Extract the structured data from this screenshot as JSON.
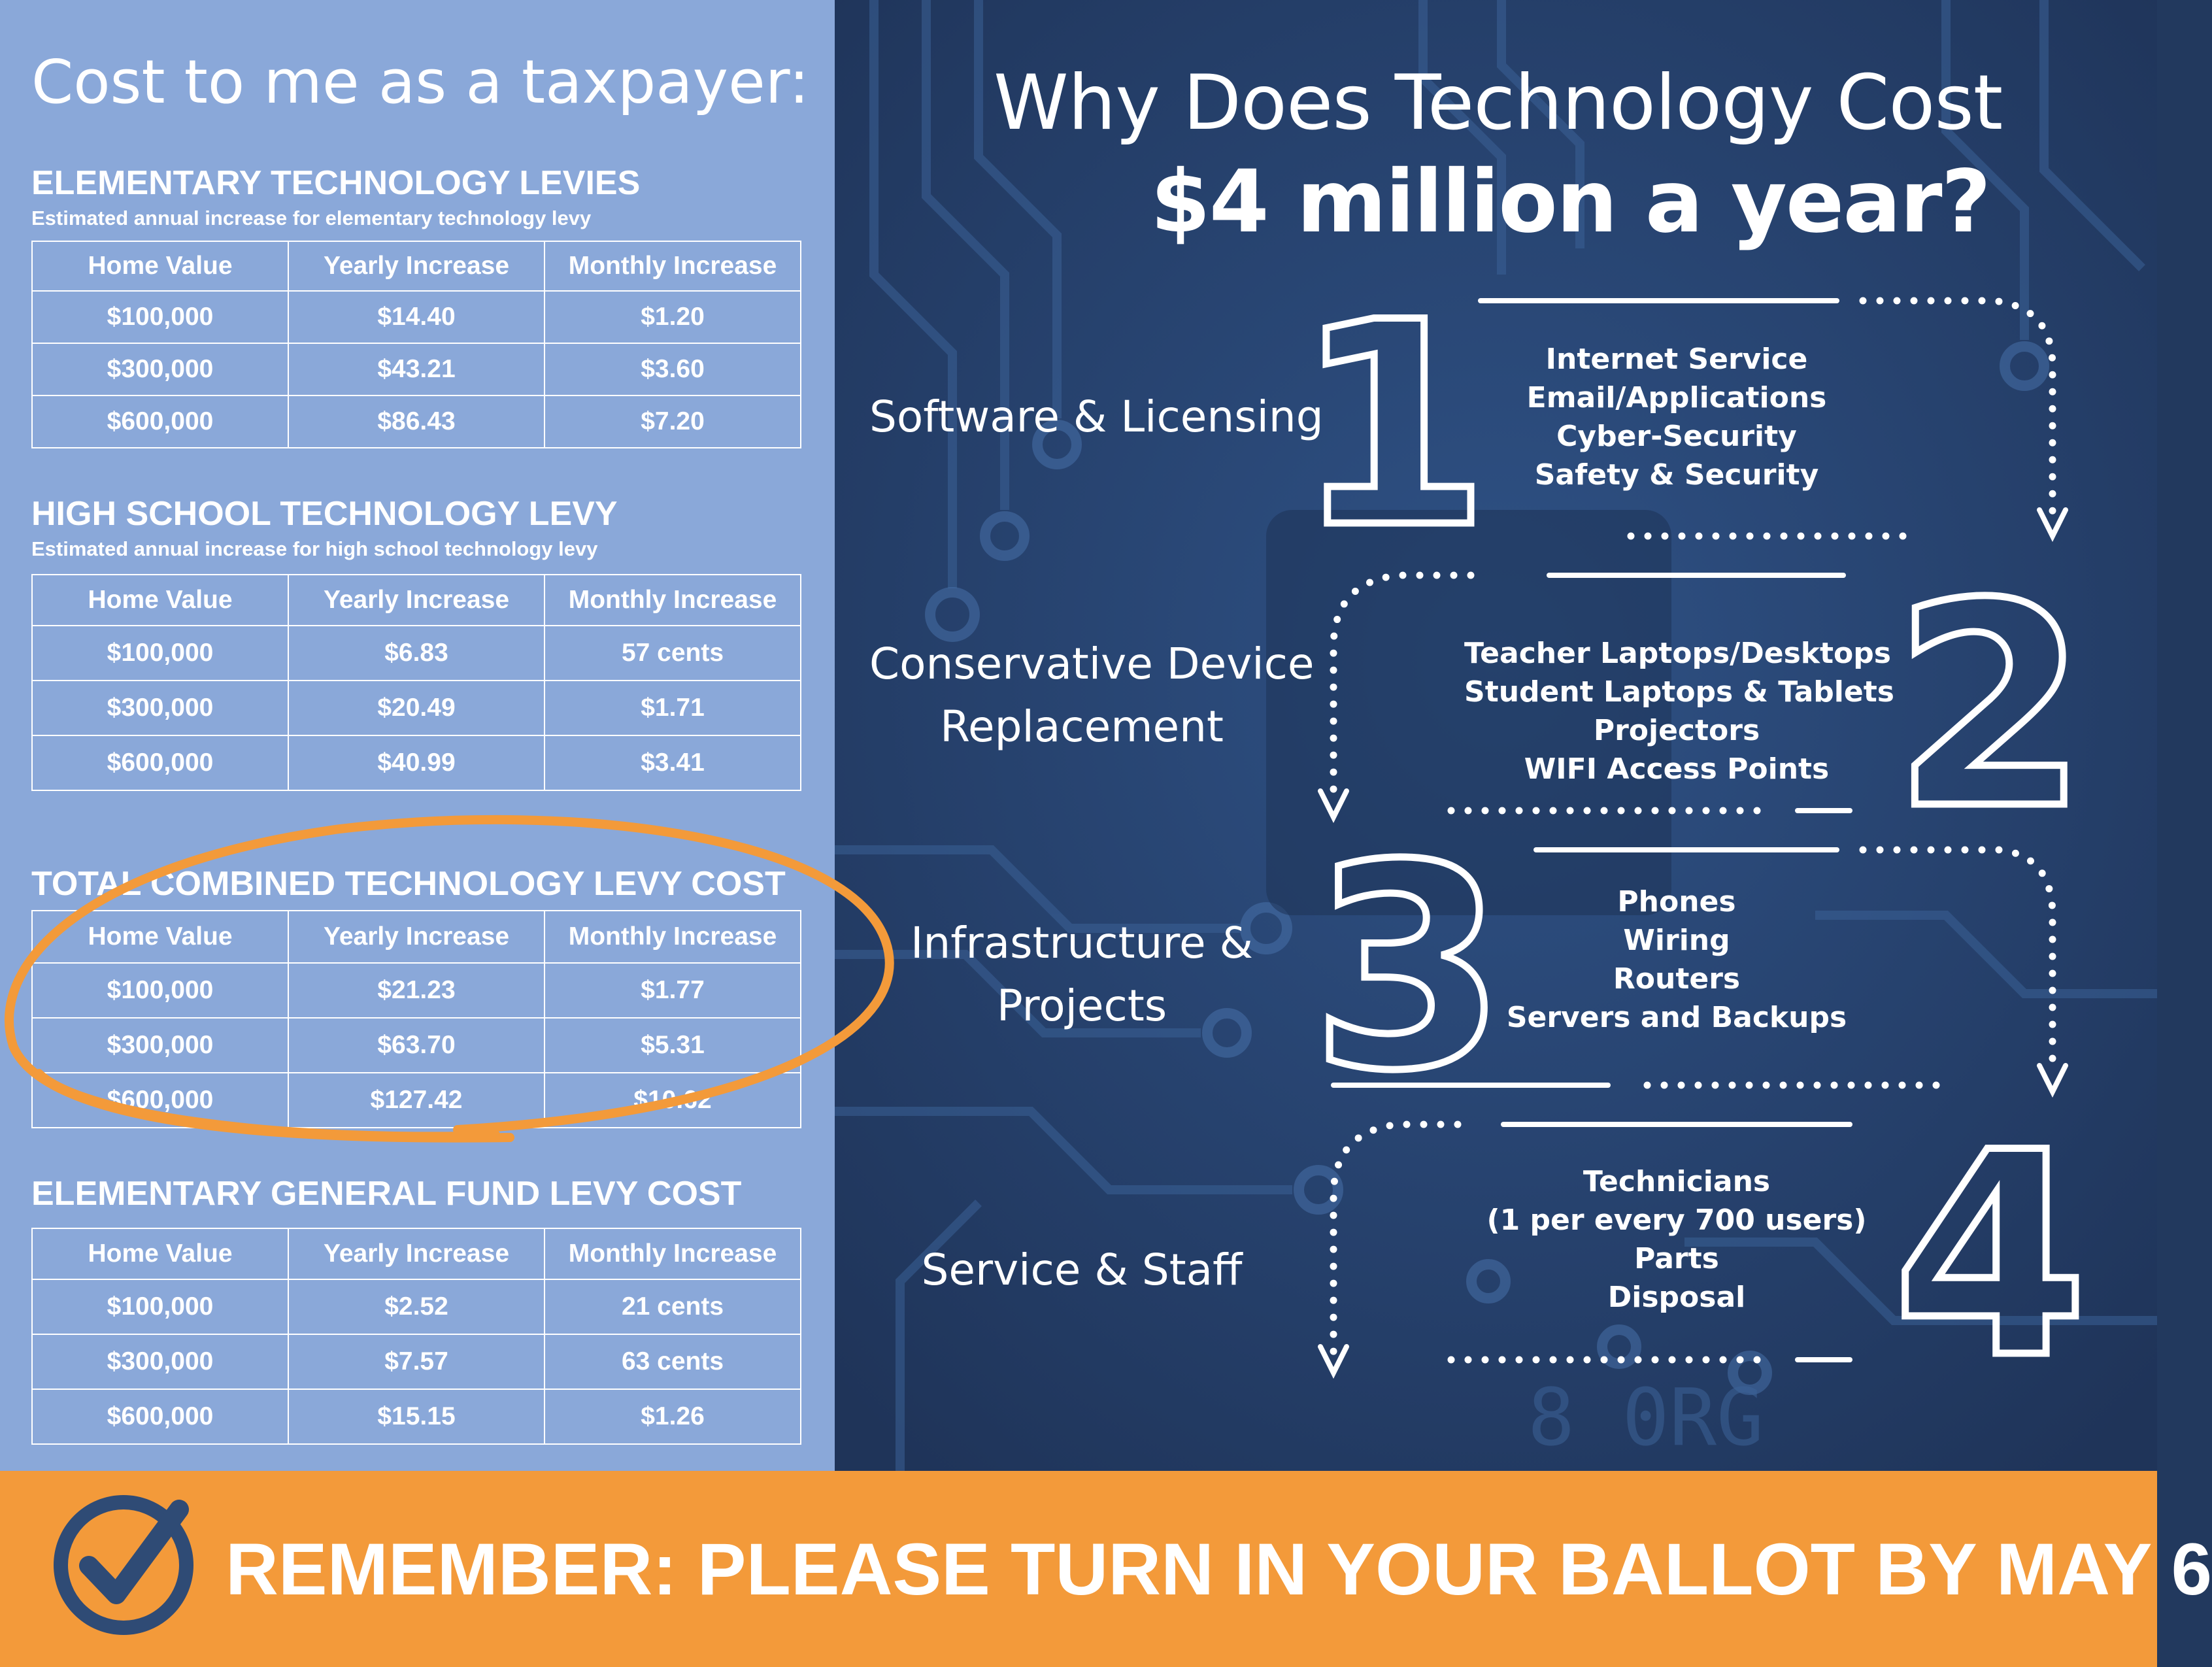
{
  "left": {
    "title": "Cost to me as a taxpayer:",
    "headers": [
      "Home Value",
      "Yearly Increase",
      "Monthly Increase"
    ],
    "sections": [
      {
        "title": "ELEMENTARY TECHNOLOGY LEVIES",
        "subtitle": "Estimated annual increase for elementary technology levy",
        "rows": [
          [
            "$100,000",
            "$14.40",
            "$1.20"
          ],
          [
            "$300,000",
            "$43.21",
            "$3.60"
          ],
          [
            "$600,000",
            "$86.43",
            "$7.20"
          ]
        ]
      },
      {
        "title": "HIGH SCHOOL TECHNOLOGY LEVY",
        "subtitle": "Estimated annual increase for high school technology levy",
        "rows": [
          [
            "$100,000",
            "$6.83",
            "57 cents"
          ],
          [
            "$300,000",
            "$20.49",
            "$1.71"
          ],
          [
            "$600,000",
            "$40.99",
            "$3.41"
          ]
        ]
      },
      {
        "title": "TOTAL COMBINED TECHNOLOGY LEVY COST",
        "rows": [
          [
            "$100,000",
            "$21.23",
            "$1.77"
          ],
          [
            "$300,000",
            "$63.70",
            "$5.31"
          ],
          [
            "$600,000",
            "$127.42",
            "$10.62"
          ]
        ]
      },
      {
        "title": "ELEMENTARY GENERAL FUND LEVY COST",
        "rows": [
          [
            "$100,000",
            "$2.52",
            "21 cents"
          ],
          [
            "$300,000",
            "$7.57",
            "63 cents"
          ],
          [
            "$600,000",
            "$15.15",
            "$1.26"
          ]
        ]
      }
    ]
  },
  "right": {
    "headline_line1": "Why Does Technology Cost",
    "headline_line2": "$4 million a year?",
    "steps": [
      {
        "number": "1",
        "label_lines": [
          "Software & Licensing"
        ],
        "items": [
          "Internet Service",
          "Email/Applications",
          "Cyber-Security",
          "Safety & Security"
        ]
      },
      {
        "number": "2",
        "label_lines": [
          "Conservative Device",
          "Replacement"
        ],
        "items": [
          "Teacher Laptops/Desktops",
          "Student Laptops & Tablets",
          "Projectors",
          "WIFI Access Points"
        ]
      },
      {
        "number": "3",
        "label_lines": [
          "Infrastructure &",
          "Projects"
        ],
        "items": [
          "Phones",
          "Wiring",
          "Routers",
          "Servers and Backups"
        ]
      },
      {
        "number": "4",
        "label_lines": [
          "Service & Staff"
        ],
        "items": [
          "Technicians",
          "(1 per every 700 users)",
          "Parts",
          "Disposal"
        ]
      }
    ]
  },
  "banner": {
    "text": "REMEMBER: PLEASE TURN IN YOUR BALLOT BY MAY 6",
    "icon": "checkmark-circle-icon"
  },
  "colors": {
    "left_panel": "#8aa8d9",
    "right_panel": "#233b62",
    "banner": "#f39a3a",
    "highlight_circle": "#f39a3a",
    "check_icon": "#2f4b75"
  }
}
